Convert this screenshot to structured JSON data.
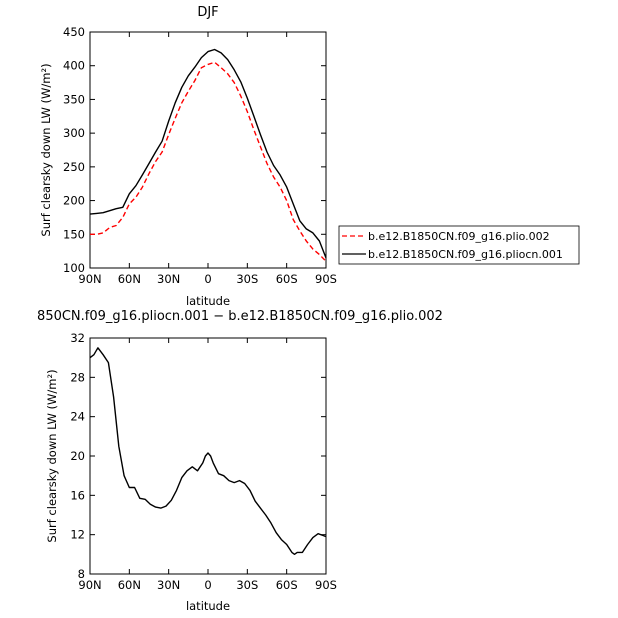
{
  "chart_data": [
    {
      "type": "line",
      "title": "DJF",
      "xlabel": "latitude",
      "ylabel": "Surf clearsky down LW (W/m²)",
      "xlim": [
        90,
        -90
      ],
      "ylim": [
        100,
        450
      ],
      "x_ticks": [
        90,
        60,
        30,
        0,
        -30,
        -60,
        -90
      ],
      "x_tick_labels": [
        "90N",
        "60N",
        "30N",
        "0",
        "30S",
        "60S",
        "90S"
      ],
      "y_ticks": [
        100,
        150,
        200,
        250,
        300,
        350,
        400,
        450
      ],
      "y_tick_labels": [
        "100",
        "150",
        "200",
        "250",
        "300",
        "350",
        "400",
        "450"
      ],
      "legend_position": "right",
      "series": [
        {
          "name": "b.e12.B1850CN.f09_g16.plio.002",
          "color": "#ff0000",
          "dash": "dashed",
          "x": [
            90,
            85,
            80,
            75,
            70,
            65,
            60,
            55,
            50,
            45,
            40,
            35,
            30,
            25,
            20,
            15,
            10,
            5,
            0,
            -5,
            -10,
            -15,
            -20,
            -25,
            -30,
            -35,
            -40,
            -45,
            -50,
            -55,
            -60,
            -65,
            -70,
            -75,
            -80,
            -85,
            -90
          ],
          "values": [
            150,
            150,
            152,
            160,
            163,
            175,
            195,
            205,
            220,
            240,
            258,
            272,
            298,
            322,
            345,
            362,
            378,
            397,
            402,
            405,
            397,
            388,
            375,
            355,
            332,
            305,
            280,
            255,
            235,
            220,
            200,
            172,
            155,
            140,
            128,
            120,
            110
          ]
        },
        {
          "name": "b.e12.B1850CN.f09_g16.pliocn.001",
          "color": "#000000",
          "dash": "solid",
          "x": [
            90,
            85,
            80,
            75,
            70,
            65,
            60,
            55,
            50,
            45,
            40,
            35,
            30,
            25,
            20,
            15,
            10,
            5,
            0,
            -5,
            -10,
            -15,
            -20,
            -25,
            -30,
            -35,
            -40,
            -45,
            -50,
            -55,
            -60,
            -65,
            -70,
            -75,
            -80,
            -85,
            -90
          ],
          "values": [
            180,
            181,
            182,
            185,
            188,
            190,
            210,
            222,
            238,
            255,
            272,
            288,
            318,
            345,
            368,
            385,
            398,
            412,
            421,
            424,
            419,
            409,
            394,
            376,
            352,
            325,
            298,
            272,
            252,
            238,
            220,
            195,
            170,
            158,
            152,
            140,
            115
          ]
        }
      ]
    },
    {
      "type": "line",
      "title": "850CN.f09_g16.pliocn.001 − b.e12.B1850CN.f09_g16.plio.002",
      "xlabel": "latitude",
      "ylabel": "Surf clearsky down LW (W/m²)",
      "xlim": [
        90,
        -90
      ],
      "ylim": [
        8,
        32
      ],
      "x_ticks": [
        90,
        60,
        30,
        0,
        -30,
        -60,
        -90
      ],
      "x_tick_labels": [
        "90N",
        "60N",
        "30N",
        "0",
        "30S",
        "60S",
        "90S"
      ],
      "y_ticks": [
        8,
        12,
        16,
        20,
        24,
        28,
        32
      ],
      "y_tick_labels": [
        "8",
        "12",
        "16",
        "20",
        "24",
        "28",
        "32"
      ],
      "series": [
        {
          "color": "#000000",
          "dash": "solid",
          "x": [
            90,
            87,
            84,
            80,
            76,
            72,
            68,
            64,
            60,
            56,
            52,
            48,
            44,
            40,
            36,
            32,
            28,
            24,
            20,
            16,
            12,
            8,
            4,
            2,
            0,
            -2,
            -4,
            -8,
            -12,
            -16,
            -20,
            -24,
            -28,
            -32,
            -36,
            -40,
            -44,
            -48,
            -52,
            -56,
            -60,
            -64,
            -66,
            -68,
            -72,
            -76,
            -80,
            -84,
            -88,
            -90
          ],
          "values": [
            30.0,
            30.3,
            31.0,
            30.3,
            29.5,
            26.0,
            21.0,
            18.0,
            16.8,
            16.8,
            15.7,
            15.6,
            15.1,
            14.8,
            14.7,
            14.9,
            15.5,
            16.5,
            17.8,
            18.5,
            18.9,
            18.5,
            19.3,
            20.0,
            20.3,
            20.0,
            19.3,
            18.2,
            18.0,
            17.5,
            17.3,
            17.5,
            17.2,
            16.5,
            15.4,
            14.7,
            14.0,
            13.2,
            12.2,
            11.5,
            11.0,
            10.2,
            10.0,
            10.2,
            10.2,
            11.0,
            11.7,
            12.1,
            11.9,
            11.8
          ]
        }
      ]
    }
  ]
}
